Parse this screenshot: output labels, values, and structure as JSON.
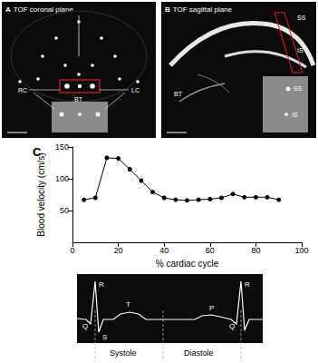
{
  "panels": [
    {
      "label": "A",
      "title": "TOF coronal plane",
      "annotations": [
        "RC",
        "BT",
        "LC"
      ]
    },
    {
      "label": "B",
      "title": "TOF sagittal plane",
      "annotations": [
        "SS",
        "IS",
        "BT"
      ],
      "inset_annotations": [
        "SS",
        "IS"
      ]
    },
    {
      "label": "C"
    }
  ],
  "ecg": {
    "waves": [
      "R",
      "Q",
      "S",
      "T",
      "P",
      "R",
      "Q"
    ],
    "phases": [
      "Systole",
      "Diastole"
    ]
  },
  "chart_data": {
    "type": "line",
    "x_label": "% cardiac cycle",
    "y_label": "Blood velocity (cm/s)",
    "x": [
      5,
      10,
      15,
      20,
      25,
      30,
      35,
      40,
      45,
      50,
      55,
      60,
      65,
      70,
      75,
      80,
      85,
      90
    ],
    "values": [
      67,
      70,
      133,
      132,
      115,
      97,
      79,
      70,
      67,
      66,
      67,
      68,
      70,
      76,
      71,
      71,
      71,
      67
    ],
    "color": "#000000",
    "marker": "circle",
    "xlim": [
      0,
      100
    ],
    "xticks": [
      0,
      20,
      40,
      60,
      80,
      100
    ],
    "ylim": [
      0,
      150
    ],
    "yticks": [
      50,
      100,
      150
    ],
    "grid": false
  }
}
